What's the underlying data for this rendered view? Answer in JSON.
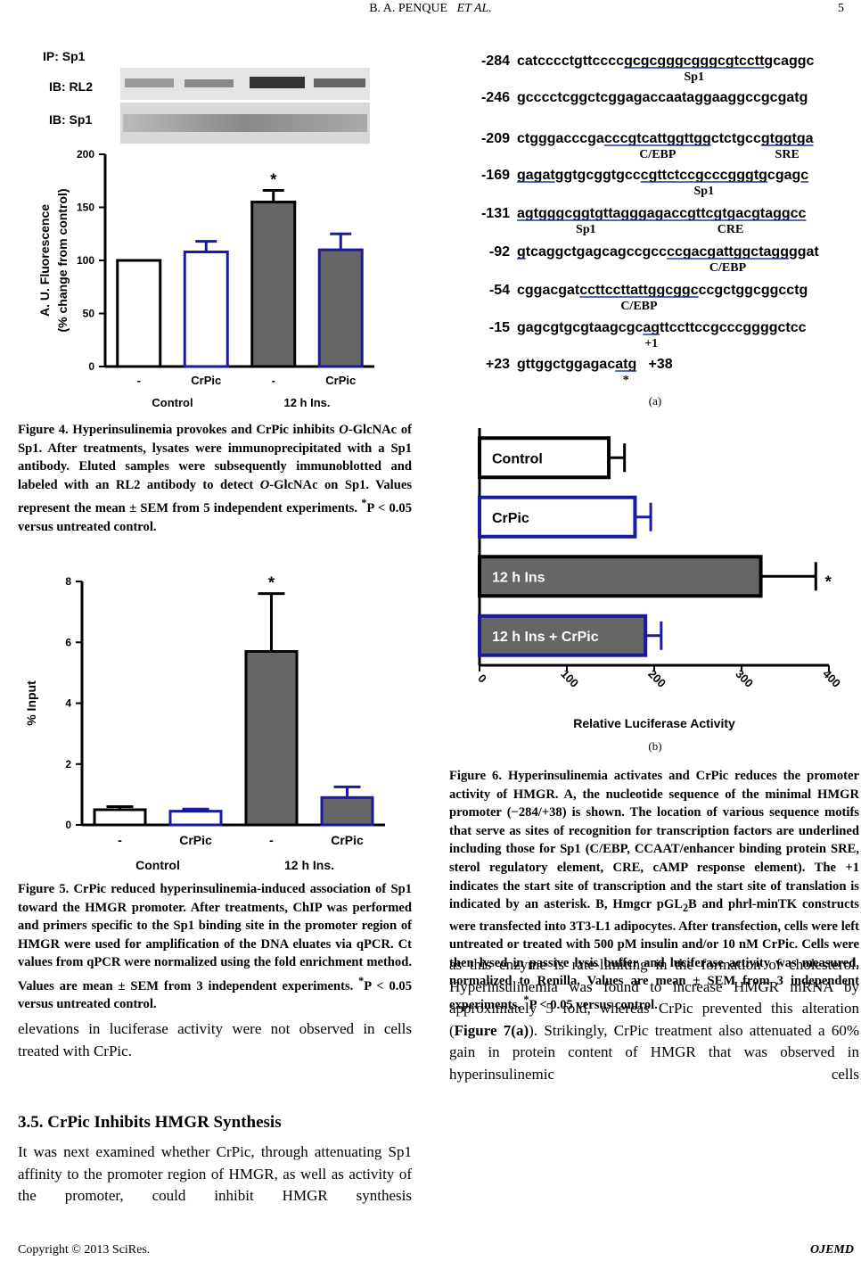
{
  "header": {
    "authors": "B. A. PENQUE",
    "etal": "ET AL.",
    "page": "5"
  },
  "figure4": {
    "blot_labels": [
      "IP: Sp1",
      "IB: RL2",
      "IB: Sp1"
    ],
    "caption": [
      "Figure 4. Hyperinsulinemia provokes and CrPic inhibits ",
      "O",
      "-GlcNAc of Sp1. After treatments, lysates were immunoprecipitated with a Sp1 antibody. Eluted samples were subsequently immunoblotted and labeled with an RL2 antibody to detect ",
      "O",
      "-GlcNAc on Sp1. Values represent the mean ± SEM from 5 independent experiments. ",
      "*",
      "P < 0.05 versus untreated control."
    ]
  },
  "figure5": {
    "caption": [
      "Figure 5. CrPic reduced hyperinsulinemia-induced association of Sp1 toward the HMGR promoter. After treatments, ChIP was performed and primers specific to the Sp1 binding site in the promoter region of HMGR were used for amplification of the DNA eluates via qPCR. Ct values from qPCR were normalized using the fold enrichment method. Values are mean ± SEM from 3 independent experiments. ",
      "*",
      "P < 0.05 versus untreated control."
    ]
  },
  "figure6": {
    "panel_a": "(a)",
    "panel_b": "(b)",
    "caption": [
      "Figure 6. Hyperinsulinemia activates and CrPic reduces the promoter activity of HMGR. A, the nucleotide sequence of the minimal HMGR promoter (−284/+38) is shown. The location of various sequence motifs that serve as sites of recognition for transcription factors are underlined including those for Sp1 (C/EBP, CCAAT/enhancer binding protein SRE, sterol regulatory element, CRE, cAMP response element). The +1 indicates the start site of transcription and the start site of translation is indicated by an asterisk. B, Hmgcr pGL",
      "2",
      "B and phrl-minTK constructs were transfected into 3T3-L1 adipocytes. After transfection, cells were left untreated or treated with 500 pM insulin and/or 10 nM CrPic. Cells were then lysed in passive lysis buffer and luciferase activity was measured, normalized to Renilla. Values are mean ± SEM from 3 independent experiments. ",
      "*",
      "P < 0.05 versus control."
    ],
    "sequence": [
      {
        "pos": "-284",
        "segments": [
          {
            "text": "catcccctgttcccc"
          },
          {
            "text": "gcgcgggcgggcgtcctt",
            "underline": true,
            "label": "Sp1"
          },
          {
            "text": "gcaggc"
          }
        ]
      },
      {
        "pos": "-246",
        "segments": [
          {
            "text": "gcccctcggctcggagaccaataggaaggccgcgatg"
          }
        ]
      },
      {
        "pos": "-209",
        "segments": [
          {
            "text": "ctgggacccga"
          },
          {
            "text": "cccgtcattggttgg",
            "underline": true,
            "label": "C/EBP"
          },
          {
            "text": "ctctgcc"
          },
          {
            "text": "gtggtga",
            "underline": true,
            "label": "SRE"
          }
        ]
      },
      {
        "pos": "-169",
        "segments": [
          {
            "text": "gagat",
            "underline": true
          },
          {
            "text": "ggtgcggtgcc"
          },
          {
            "text": "cgttctccgcccgggtg",
            "underline": true,
            "label": "Sp1"
          },
          {
            "text": "cgag"
          },
          {
            "text": "c",
            "underline": true
          }
        ]
      },
      {
        "pos": "-131",
        "segments": [
          {
            "text": "agtgggcggtgttaggga",
            "underline": true,
            "label": "Sp1"
          },
          {
            "text": "gaccgttcgtgacgtaggcc",
            "underline": true,
            "label": "CRE"
          }
        ]
      },
      {
        "pos": "-92",
        "segments": [
          {
            "text": "g",
            "underline": true
          },
          {
            "text": "tcaggctgagcagccgcc"
          },
          {
            "text": "ccgacgattggctagg",
            "underline": true,
            "label": "C/EBP"
          },
          {
            "text": "ggat"
          }
        ]
      },
      {
        "pos": "-54",
        "segments": [
          {
            "text": "cggacgat"
          },
          {
            "text": "ccttccttattggcggc",
            "underline": true,
            "label": "C/EBP"
          },
          {
            "text": "ccgctggcggcctg"
          }
        ]
      },
      {
        "pos": "-15",
        "segments": [
          {
            "text": "gagcgtgcgtaagcgc"
          },
          {
            "text": "ag",
            "underline": true,
            "label": "+1"
          },
          {
            "text": "ttccttccgcccggggctcc"
          }
        ]
      },
      {
        "pos": "+23",
        "segments": [
          {
            "text": "gttggctggagac"
          },
          {
            "text": "atg",
            "underline": true,
            "label": "*"
          },
          {
            "text": "   +38"
          }
        ]
      }
    ]
  },
  "chart_data": [
    {
      "type": "bar",
      "categories": [
        "-",
        "CrPic",
        "-",
        "CrPic"
      ],
      "groups": [
        "Control",
        "12 h Ins."
      ],
      "ylabel": [
        "A. U. Fluorescence",
        "(% change from control)"
      ],
      "values": [
        100,
        108,
        155,
        110
      ],
      "errors": [
        0,
        10,
        11,
        15
      ],
      "colors": [
        "#ffffff",
        "#ffffff",
        "#666666",
        "#666666"
      ],
      "edgecolors": [
        "#000000",
        "#1a1aa0",
        "#000000",
        "#1a1aa0"
      ],
      "ylim": [
        0,
        200
      ],
      "yticks": [
        0,
        50,
        100,
        150,
        200
      ],
      "annotations": [
        {
          "text": "*",
          "at": 2
        }
      ]
    },
    {
      "type": "bar",
      "categories": [
        "-",
        "CrPic",
        "-",
        "CrPic"
      ],
      "groups": [
        "Control",
        "12 h Ins."
      ],
      "ylabel": [
        "% Input"
      ],
      "values": [
        0.5,
        0.45,
        5.7,
        0.9
      ],
      "errors": [
        0.1,
        0.07,
        1.9,
        0.35
      ],
      "colors": [
        "#ffffff",
        "#ffffff",
        "#666666",
        "#666666"
      ],
      "edgecolors": [
        "#000000",
        "#1a1aa0",
        "#000000",
        "#1a1aa0"
      ],
      "ylim": [
        0,
        8
      ],
      "yticks": [
        0,
        2,
        4,
        6,
        8
      ],
      "annotations": [
        {
          "text": "*",
          "at": 2
        }
      ]
    },
    {
      "type": "barh",
      "categories": [
        "Control",
        "CrPic",
        "12 h Ins",
        "12 h Ins + CrPic"
      ],
      "xlabel": "Relative Luciferase Activity",
      "values": [
        148,
        178,
        322,
        190
      ],
      "errors": [
        18,
        18,
        63,
        18
      ],
      "colors": [
        "#ffffff",
        "#ffffff",
        "#666666",
        "#666666"
      ],
      "edgecolors": [
        "#000000",
        "#1a1aa0",
        "#000000",
        "#1a1aa0"
      ],
      "text_colors": [
        "#000000",
        "#000000",
        "#ffffff",
        "#ffffff"
      ],
      "xlim": [
        0,
        400
      ],
      "xticks": [
        0,
        100,
        200,
        300,
        400
      ],
      "annotations": [
        {
          "text": "*",
          "at": 2
        }
      ]
    }
  ],
  "text": {
    "left_para1": "elevations in luciferase activity were not observed in cells treated with CrPic.",
    "heading": "3.5. CrPic Inhibits HMGR Synthesis",
    "left_para2": "It was next examined whether CrPic, through attenuating Sp1 affinity to the promoter region of HMGR, as well as activity of the promoter, could inhibit HMGR synthesis",
    "right_para": [
      "as this enzyme is rate-limiting in the formation of cholesterol. Hyperinsulinemia was found to increase HMGR mRNA by approximately 5 fold, whereas CrPic prevented this alteration (",
      "Figure 7(a)",
      "). Strikingly, CrPic treatment also attenuated a 60% gain in protein content of HMGR that was observed in hyperinsulinemic cells"
    ]
  },
  "footer": {
    "copyright": "Copyright © 2013 SciRes.",
    "journal": "OJEMD"
  }
}
